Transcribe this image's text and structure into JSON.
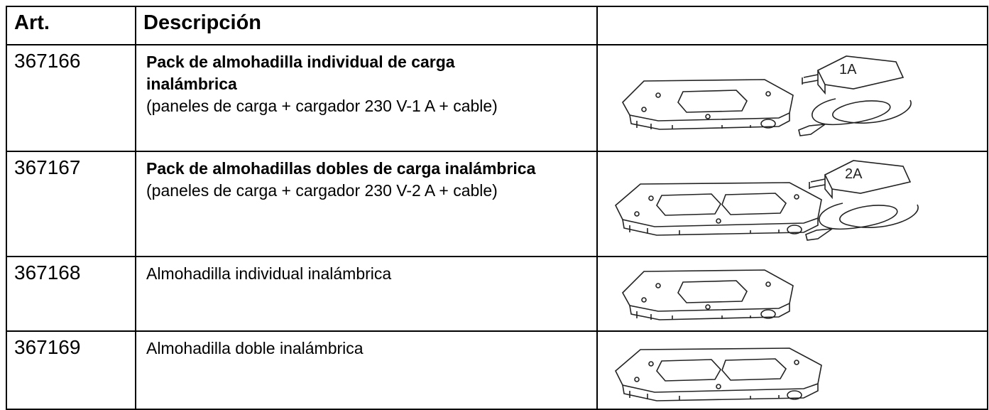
{
  "table": {
    "header": {
      "art": "Art.",
      "description": "Descripción"
    },
    "rows": [
      {
        "art": "367166",
        "title": "Pack de almohadilla individual de carga inalámbrica",
        "detail": "(paneles de carga + cargador 230 V-1 A + cable)",
        "charger_label": "1A"
      },
      {
        "art": "367167",
        "title": "Pack de almohadillas dobles de carga inalámbrica",
        "detail": "(paneles de carga + cargador 230 V-2 A + cable)",
        "charger_label": "2A"
      },
      {
        "art": "367168",
        "name": "Almohadilla individual inalámbrica"
      },
      {
        "art": "367169",
        "name": "Almohadilla doble inalámbrica"
      }
    ]
  }
}
